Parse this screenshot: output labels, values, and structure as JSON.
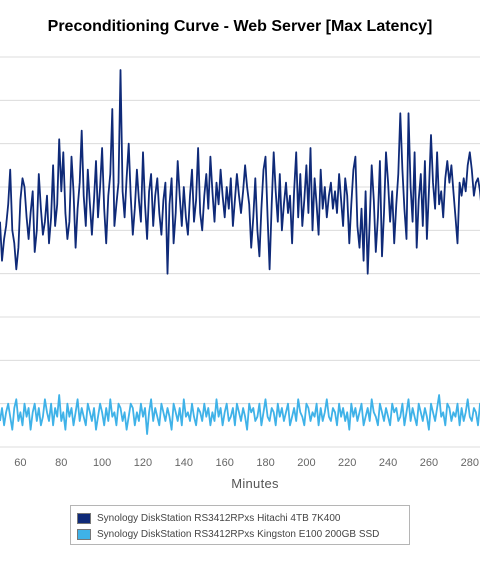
{
  "chart_data": {
    "type": "line",
    "title": "Preconditioning Curve - Web Server [Max Latency]",
    "xlabel": "Minutes",
    "ylabel": "",
    "xlim": [
      50,
      285
    ],
    "x_ticks": [
      60,
      80,
      100,
      120,
      140,
      160,
      180,
      200,
      220,
      240,
      260,
      280
    ],
    "ylim": [
      0,
      9
    ],
    "grid": true,
    "legend_position": "bottom",
    "series": [
      {
        "name": "Synology DiskStation RS3412RPxs Hitachi 4TB 7K400",
        "color": "#0f2a78",
        "x_start": 50,
        "x_step": 1,
        "values": [
          5.2,
          4.3,
          4.8,
          5.1,
          5.6,
          6.4,
          5.0,
          4.7,
          4.1,
          4.6,
          5.7,
          6.2,
          6.0,
          5.3,
          4.8,
          5.4,
          5.9,
          4.5,
          5.0,
          6.3,
          5.5,
          4.9,
          5.2,
          5.8,
          4.7,
          5.3,
          6.5,
          5.1,
          5.6,
          7.1,
          5.9,
          6.8,
          5.4,
          4.8,
          5.2,
          6.7,
          5.9,
          4.6,
          5.5,
          6.1,
          7.3,
          5.8,
          5.1,
          6.4,
          5.6,
          4.9,
          5.7,
          6.6,
          5.3,
          6.0,
          6.9,
          5.5,
          4.7,
          5.8,
          6.3,
          7.8,
          5.1,
          5.6,
          6.1,
          8.7,
          5.9,
          5.3,
          6.2,
          7.0,
          5.8,
          4.9,
          5.5,
          6.4,
          5.7,
          5.2,
          6.8,
          5.6,
          4.8,
          5.9,
          6.3,
          5.1,
          5.8,
          6.2,
          5.4,
          4.9,
          5.7,
          6.1,
          4.0,
          5.6,
          6.2,
          4.7,
          5.4,
          6.6,
          5.8,
          5.1,
          6.0,
          5.3,
          4.9,
          5.8,
          6.4,
          5.2,
          5.7,
          6.9,
          5.4,
          5.0,
          5.8,
          6.3,
          5.5,
          6.7,
          5.9,
          5.2,
          6.1,
          5.6,
          6.4,
          5.8,
          5.3,
          6.0,
          5.5,
          6.2,
          5.1,
          5.7,
          6.3,
          5.8,
          5.4,
          5.9,
          6.5,
          6.0,
          5.6,
          4.6,
          5.3,
          6.2,
          5.0,
          4.4,
          5.5,
          6.4,
          6.7,
          5.3,
          4.1,
          5.6,
          6.8,
          5.9,
          5.2,
          6.3,
          5.0,
          5.6,
          6.1,
          5.4,
          5.8,
          4.7,
          5.9,
          6.8,
          5.3,
          6.3,
          5.1,
          5.7,
          6.5,
          5.4,
          6.9,
          5.0,
          6.2,
          5.6,
          4.9,
          6.4,
          5.5,
          6.0,
          5.3,
          5.8,
          6.1,
          5.5,
          5.9,
          5.4,
          6.3,
          5.7,
          5.1,
          6.2,
          5.8,
          4.7,
          5.6,
          6.4,
          6.7,
          5.1,
          4.6,
          5.5,
          4.3,
          5.9,
          4.0,
          5.2,
          6.5,
          5.7,
          4.5,
          5.3,
          6.6,
          4.4,
          5.4,
          6.8,
          6.1,
          5.2,
          5.9,
          4.7,
          5.6,
          6.3,
          7.7,
          6.4,
          5.5,
          4.8,
          7.7,
          6.0,
          5.2,
          6.8,
          4.6,
          5.7,
          6.3,
          5.1,
          6.6,
          4.8,
          5.9,
          7.2,
          6.1,
          5.5,
          6.8,
          5.6,
          5.9,
          5.3,
          6.2,
          6.6,
          6.1,
          6.5,
          5.9,
          5.3,
          4.7,
          6.1,
          5.8,
          6.2,
          5.9,
          6.5,
          6.8,
          6.4,
          5.8,
          6.1,
          6.2,
          5.9,
          5.4,
          5.7,
          6.1
        ]
      },
      {
        "name": "Synology DiskStation RS3412RPxs Kingston E100 200GB SSD",
        "color": "#3fb2e8",
        "x_start": 50,
        "x_step": 1,
        "values": [
          0.6,
          0.9,
          0.5,
          0.8,
          1.0,
          0.7,
          0.4,
          0.9,
          1.1,
          0.6,
          0.8,
          0.5,
          1.0,
          0.7,
          0.9,
          0.4,
          0.8,
          1.0,
          0.6,
          0.9,
          0.5,
          0.7,
          1.1,
          0.8,
          0.6,
          1.0,
          0.5,
          0.9,
          0.7,
          1.2,
          0.6,
          0.8,
          0.4,
          1.0,
          0.7,
          0.9,
          0.5,
          0.8,
          1.1,
          0.6,
          0.9,
          0.7,
          0.5,
          1.0,
          0.8,
          0.6,
          0.9,
          0.4,
          0.7,
          1.0,
          0.8,
          0.5,
          0.9,
          0.6,
          1.1,
          0.7,
          0.8,
          0.5,
          1.0,
          0.9,
          0.6,
          0.8,
          0.4,
          0.7,
          1.0,
          0.9,
          0.5,
          0.8,
          0.6,
          1.0,
          0.7,
          0.9,
          0.3,
          0.8,
          1.1,
          0.6,
          0.9,
          0.7,
          0.5,
          1.0,
          0.8,
          0.6,
          0.9,
          0.7,
          0.4,
          1.0,
          0.8,
          0.6,
          0.9,
          0.5,
          1.1,
          0.7,
          0.8,
          0.6,
          1.0,
          0.7,
          0.5,
          0.9,
          0.8,
          0.6,
          1.0,
          0.7,
          0.9,
          0.5,
          0.8,
          0.6,
          1.1,
          0.7,
          0.9,
          0.5,
          0.8,
          1.0,
          0.6,
          0.7,
          0.9,
          0.5,
          1.0,
          0.8,
          0.6,
          0.9,
          0.7,
          0.4,
          1.0,
          0.8,
          0.9,
          0.6,
          0.7,
          1.0,
          0.5,
          0.8,
          1.1,
          0.7,
          0.6,
          0.9,
          0.8,
          0.5,
          1.0,
          0.7,
          0.9,
          0.6,
          0.8,
          1.0,
          0.5,
          0.7,
          0.9,
          0.6,
          1.1,
          0.8,
          0.7,
          0.5,
          1.0,
          0.9,
          0.6,
          0.8,
          0.7,
          1.0,
          0.5,
          0.9,
          0.6,
          0.8,
          1.1,
          0.7,
          0.6,
          0.9,
          0.8,
          0.5,
          1.0,
          0.7,
          0.9,
          0.6,
          0.8,
          0.4,
          1.0,
          0.7,
          0.9,
          0.6,
          0.8,
          1.0,
          0.5,
          0.7,
          0.9,
          0.6,
          1.1,
          0.8,
          0.7,
          0.5,
          1.0,
          0.8,
          0.6,
          0.9,
          0.7,
          0.5,
          1.0,
          0.8,
          0.9,
          0.6,
          0.7,
          1.0,
          0.5,
          0.8,
          1.1,
          0.6,
          0.9,
          0.7,
          0.5,
          1.0,
          0.8,
          0.6,
          0.9,
          0.7,
          0.4,
          1.0,
          0.8,
          0.6,
          0.9,
          1.2,
          0.7,
          0.8,
          0.5,
          1.0,
          0.9,
          0.6,
          0.8,
          0.7,
          1.0,
          0.5,
          0.9,
          0.6,
          0.8,
          1.1,
          0.7,
          0.6,
          0.9,
          0.8,
          0.5,
          1.0,
          0.7,
          0.9
        ]
      }
    ]
  }
}
